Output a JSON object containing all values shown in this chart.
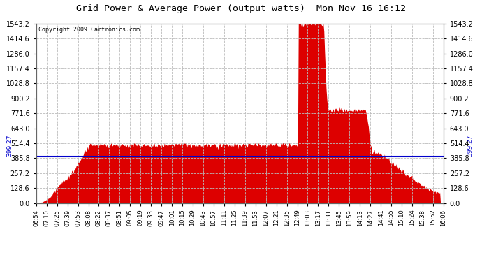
{
  "title": "Grid Power & Average Power (output watts)  Mon Nov 16 16:12",
  "copyright": "Copyright 2009 Cartronics.com",
  "avg_power": 399.27,
  "y_max": 1543.2,
  "y_ticks": [
    0.0,
    128.6,
    257.2,
    385.8,
    514.4,
    643.0,
    771.6,
    900.2,
    1028.8,
    1157.4,
    1286.0,
    1414.6,
    1543.2
  ],
  "background_color": "#ffffff",
  "plot_bg_color": "#ffffff",
  "fill_color": "#dd0000",
  "line_color": "#0000cc",
  "grid_color": "#bbbbbb",
  "title_fontsize": 9.5,
  "tick_fontsize": 7,
  "copyright_fontsize": 6.5,
  "x_labels": [
    "06:54",
    "07:10",
    "07:25",
    "07:39",
    "07:53",
    "08:08",
    "08:22",
    "08:37",
    "08:51",
    "09:05",
    "09:19",
    "09:33",
    "09:47",
    "10:01",
    "10:15",
    "10:29",
    "10:43",
    "10:57",
    "11:11",
    "11:25",
    "11:39",
    "11:53",
    "12:07",
    "12:21",
    "12:35",
    "12:49",
    "13:03",
    "13:17",
    "13:31",
    "13:45",
    "13:59",
    "14:13",
    "14:27",
    "14:41",
    "14:55",
    "15:10",
    "15:24",
    "15:38",
    "15:52",
    "16:06"
  ]
}
